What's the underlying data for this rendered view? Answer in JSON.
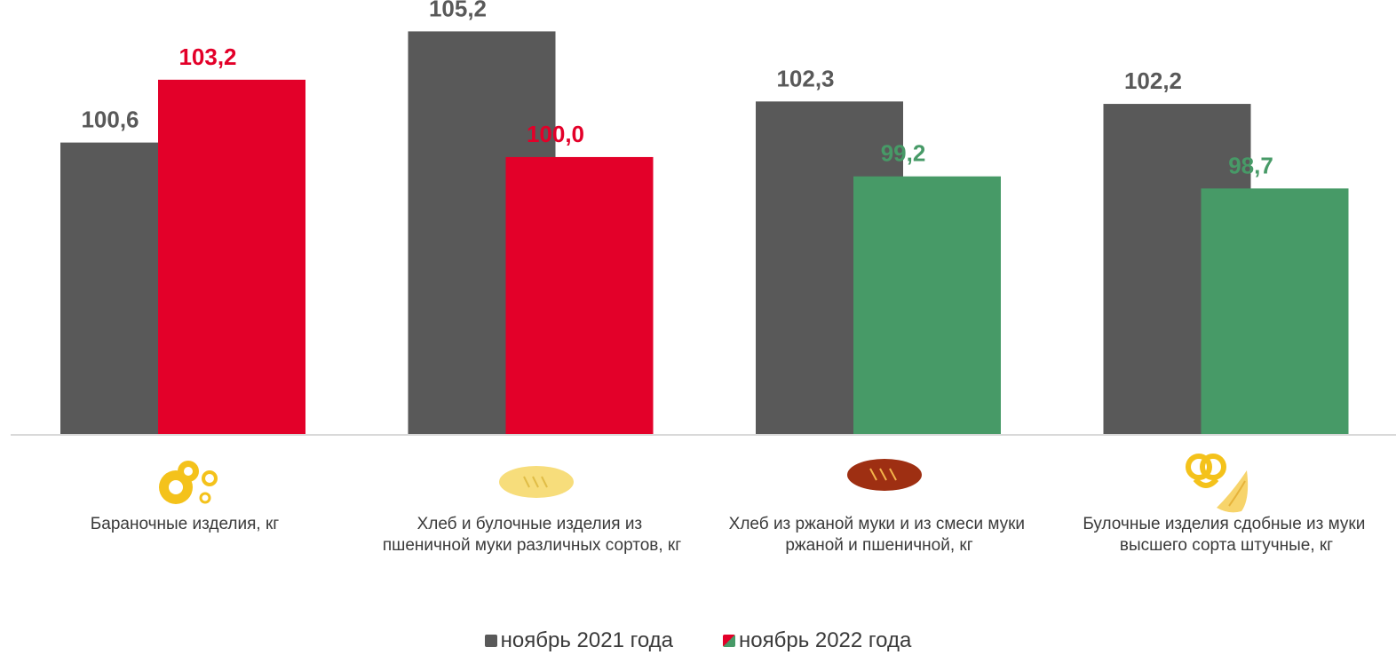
{
  "colors": {
    "series_2021": "#595959",
    "increase": "#e30029",
    "decrease": "#479a67",
    "baseline": "#d9d9d9"
  },
  "legend": {
    "item_2021": "ноябрь 2021 года",
    "item_2022": "ноябрь 2022 года"
  },
  "chart_data": {
    "type": "bar",
    "categories": [
      [
        "Бараночные изделия, кг"
      ],
      [
        "Хлеб и булочные изделия из",
        "пшеничной муки различных сортов, кг"
      ],
      [
        "Хлеб из ржаной муки и из смеси муки",
        "ржаной и пшеничной, кг"
      ],
      [
        "Булочные изделия сдобные из муки",
        "высшего сорта штучные, кг"
      ]
    ],
    "category_icons": [
      "bagels-icon",
      "wheat-loaf-icon",
      "rye-loaf-icon",
      "pretzel-croissant-icon"
    ],
    "series": [
      {
        "name": "ноябрь 2021 года",
        "values": [
          100.6,
          105.2,
          102.3,
          102.2
        ],
        "labels": [
          "100,6",
          "105,2",
          "102,3",
          "102,2"
        ]
      },
      {
        "name": "ноябрь 2022 года",
        "values": [
          103.2,
          100.0,
          99.2,
          98.7
        ],
        "labels": [
          "103,2",
          "100,0",
          "99,2",
          "98,7"
        ]
      }
    ],
    "ylim": [
      88.5,
      106.5
    ],
    "grid": false,
    "legend_position": "bottom"
  }
}
